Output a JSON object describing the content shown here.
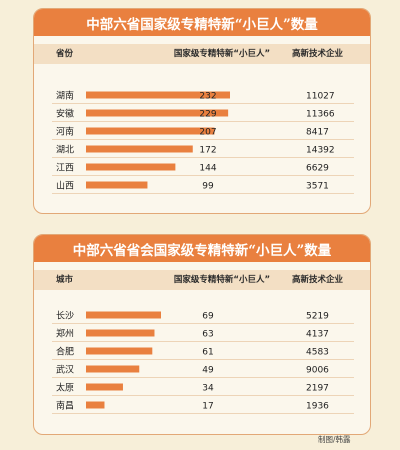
{
  "colors": {
    "bar": "#e9803f",
    "title_bg": "#e9803f",
    "header_bg": "#f3dfc4",
    "divider": "#e8c9a6",
    "panel_border": "#e2a877"
  },
  "chart_data": [
    {
      "type": "bar",
      "title": "中部六省国家级专精特新“小巨人”数量",
      "columns": [
        "省份",
        "国家级专精特新“小巨人”",
        "高新技术企业"
      ],
      "categories": [
        "湖南",
        "安徽",
        "河南",
        "湖北",
        "江西",
        "山西"
      ],
      "values": [
        232,
        229,
        207,
        172,
        144,
        99
      ],
      "enterprises": [
        "11027",
        "11366",
        "8417",
        "14392",
        "6629",
        "3571"
      ],
      "xlim": [
        0,
        232
      ]
    },
    {
      "type": "bar",
      "title": "中部六省省会国家级专精特新“小巨人”数量",
      "columns": [
        "城市",
        "国家级专精特新“小巨人”",
        "高新技术企业"
      ],
      "categories": [
        "长沙",
        "郑州",
        "合肥",
        "武汉",
        "太原",
        "南昌"
      ],
      "values": [
        69,
        63,
        61,
        49,
        34,
        17
      ],
      "enterprises": [
        "5219",
        "4137",
        "4583",
        "9006",
        "2197",
        "1936"
      ],
      "xlim": [
        0,
        69
      ]
    }
  ],
  "credit": "制图/韩露"
}
